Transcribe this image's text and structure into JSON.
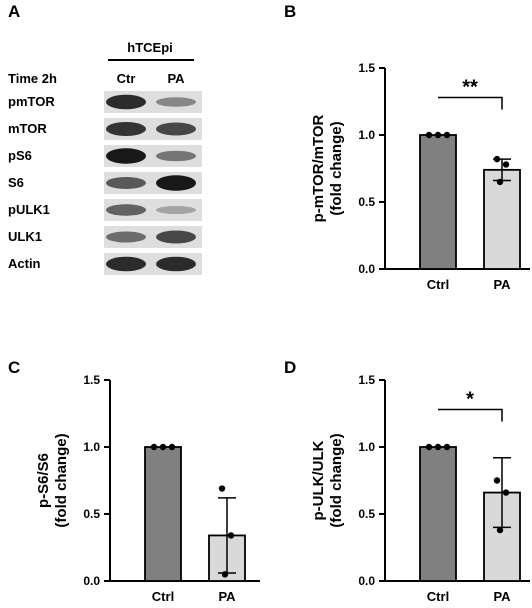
{
  "figure": {
    "panel_labels": [
      "A",
      "B",
      "C",
      "D"
    ]
  },
  "blot": {
    "cell_line": "hTCEpi",
    "time_label": "Time 2h",
    "lane_labels": [
      "Ctr",
      "PA"
    ],
    "rows": [
      {
        "label": "pmTOR",
        "ctr": 0.85,
        "pa": 0.35
      },
      {
        "label": "mTOR",
        "ctr": 0.8,
        "pa": 0.7
      },
      {
        "label": "pS6",
        "ctr": 0.95,
        "pa": 0.45
      },
      {
        "label": "S6",
        "ctr": 0.6,
        "pa": 0.95
      },
      {
        "label": "pULK1",
        "ctr": 0.55,
        "pa": 0.2
      },
      {
        "label": "ULK1",
        "ctr": 0.5,
        "pa": 0.7
      },
      {
        "label": "Actin",
        "ctr": 0.85,
        "pa": 0.85
      }
    ]
  },
  "colors": {
    "ctrl_bar": "#808080",
    "pa_bar": "#d9d9d9"
  },
  "chart_data": [
    {
      "panel": "B",
      "type": "bar",
      "categories": [
        "Ctrl",
        "PA"
      ],
      "values": [
        1.0,
        0.74
      ],
      "error": [
        0.0,
        0.08
      ],
      "points": [
        [
          1.0,
          1.0,
          1.0
        ],
        [
          0.82,
          0.78,
          0.65
        ]
      ],
      "ylabel_line1": "p-mTOR/mTOR",
      "ylabel_line2": "(fold change)",
      "ylim": [
        0,
        1.5
      ],
      "yticks": [
        "0.0",
        "0.5",
        "1.0",
        "1.5"
      ],
      "significance": "**"
    },
    {
      "panel": "C",
      "type": "bar",
      "categories": [
        "Ctrl",
        "PA"
      ],
      "values": [
        1.0,
        0.34
      ],
      "error": [
        0.0,
        0.28
      ],
      "points": [
        [
          1.0,
          1.0,
          1.0
        ],
        [
          0.69,
          0.34,
          0.05
        ]
      ],
      "ylabel_line1": "p-S6/S6",
      "ylabel_line2": "(fold change)",
      "ylim": [
        0,
        1.5
      ],
      "yticks": [
        "0.0",
        "0.5",
        "1.0",
        "1.5"
      ],
      "significance": ""
    },
    {
      "panel": "D",
      "type": "bar",
      "categories": [
        "Ctrl",
        "PA"
      ],
      "values": [
        1.0,
        0.66
      ],
      "error": [
        0.0,
        0.26
      ],
      "points": [
        [
          1.0,
          1.0,
          1.0
        ],
        [
          0.75,
          0.66,
          0.38
        ]
      ],
      "ylabel_line1": "p-ULK/ULK",
      "ylabel_line2": "(fold change)",
      "ylim": [
        0,
        1.5
      ],
      "yticks": [
        "0.0",
        "0.5",
        "1.0",
        "1.5"
      ],
      "significance": "*"
    }
  ]
}
